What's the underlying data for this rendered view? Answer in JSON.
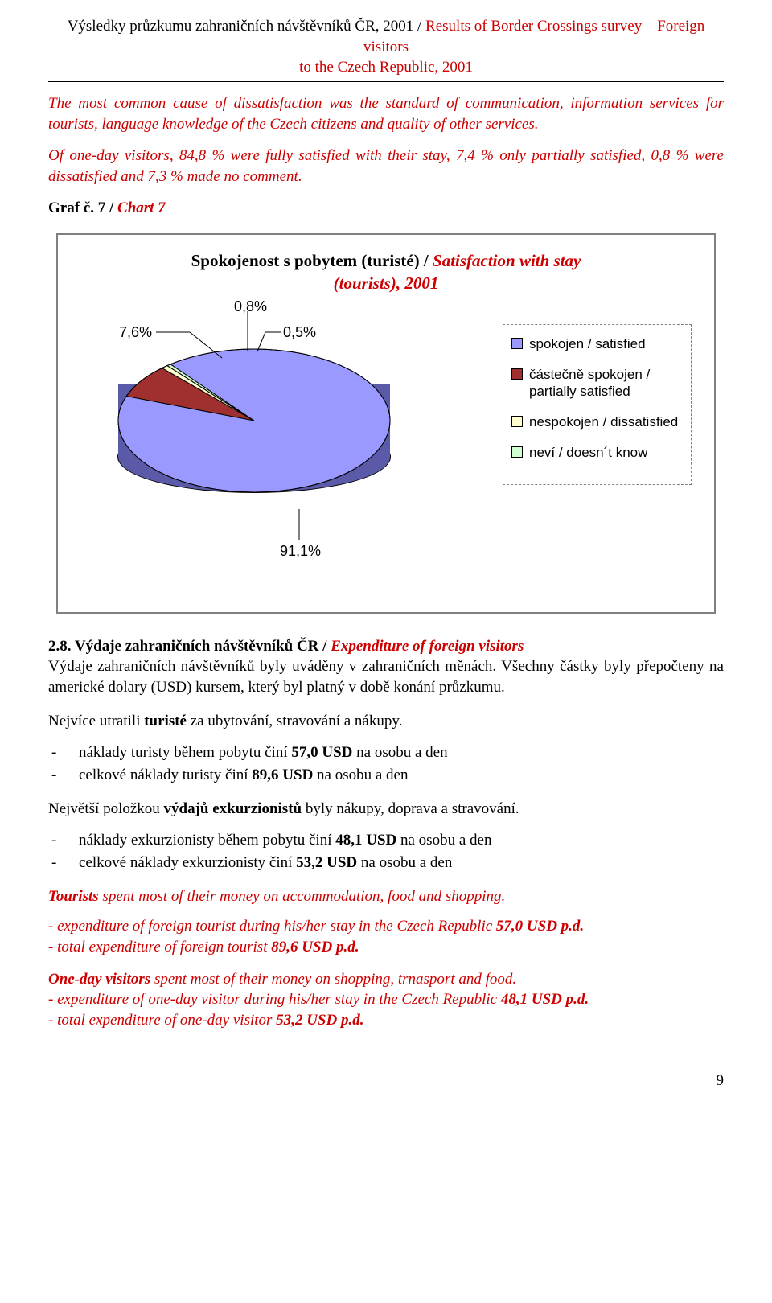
{
  "header": {
    "line1a": "Výsledky průzkumu zahraničních návštěvníků ČR, 2001 / ",
    "line1b": "Results of Border Crossings survey – Foreign visitors",
    "line2": "to the Czech Republic, 2001"
  },
  "p1": "The most common cause of dissatisfaction was the standard of communication, information services for tourists, language knowledge of the Czech citizens and quality of other services.",
  "p2": "Of one-day visitors, 84,8 % were fully satisfied with their stay, 7,4 % only partially satisfied, 0,8 % were dissatisfied and 7,3 % made no comment.",
  "chartLabel": {
    "a": "Graf č. 7 / ",
    "b": "Chart 7"
  },
  "chart": {
    "type": "pie-3d",
    "title_a": "Spokojenost s pobytem  (turisté) / ",
    "title_b": "Satisfaction with stay",
    "title_c": "(tourists), 2001",
    "slices": [
      {
        "label": "spokojen / satisfied",
        "pct": 91.1,
        "pct_label": "91,1%",
        "color": "#9999ff"
      },
      {
        "label": "částečně spokojen / partially satisfied",
        "pct": 7.6,
        "pct_label": "7,6%",
        "color": "#a03030"
      },
      {
        "label": "nespokojen / dissatisfied",
        "pct": 0.8,
        "pct_label": "0,8%",
        "color": "#ffffd0"
      },
      {
        "label": "neví / doesn´t know",
        "pct": 0.5,
        "pct_label": "0,5%",
        "color": "#d0ffd0"
      }
    ],
    "side_color": "#5a5aa8",
    "border_color": "#000000",
    "background": "#ffffff",
    "font_family_labels": "Arial",
    "label_fontsize": 17,
    "title_fontsize": 21
  },
  "sec28": {
    "head_a": "2.8. Výdaje zahraničních návštěvníků ČR / ",
    "head_b": "Expenditure of foreign visitors",
    "p1": "Výdaje zahraničních návštěvníků byly uváděny v zahraničních měnách. Všechny částky byly přepočteny na americké dolary (USD) kursem, který byl platný v době konání průzkumu.",
    "p2_a": "Nejvíce utratili ",
    "p2_b": "turisté",
    "p2_c": " za ubytování, stravování a nákupy.",
    "li1_a": "náklady turisty během pobytu činí ",
    "li1_b": "57,0 USD",
    "li1_c": " na osobu a den",
    "li2_a": "celkové náklady turisty činí ",
    "li2_b": "89,6 USD",
    "li2_c": " na osobu a den",
    "p3_a": "Největší položkou ",
    "p3_b": "výdajů exkurzionistů",
    "p3_c": " byly nákupy, doprava a stravování.",
    "li3_a": "náklady exkurzionisty během pobytu činí ",
    "li3_b": "48,1 USD",
    "li3_c": " na osobu a den",
    "li4_a": "celkové náklady exkurzionisty činí ",
    "li4_b": "53,2 USD",
    "li4_c": " na osobu a den",
    "p4_a": "Tourists",
    "p4_b": " spent most of their money on accommodation, food and shopping.",
    "li5_a": "- expenditure of foreign tourist during his/her stay in the Czech Republic ",
    "li5_b": "57,0 USD p.d.",
    "li6_a": "- total expenditure of foreign tourist ",
    "li6_b": "89,6 USD p.d.",
    "p5_a": "One-day visitors",
    "p5_b": " spent most of their money on shopping, trnasport and food.",
    "li7_a": "- expenditure of one-day visitor during his/her stay in the Czech Republic ",
    "li7_b": "48,1 USD p.d.",
    "li8_a": "- total expenditure of one-day visitor ",
    "li8_b": "53,2 USD p.d."
  },
  "pageNumber": "9"
}
